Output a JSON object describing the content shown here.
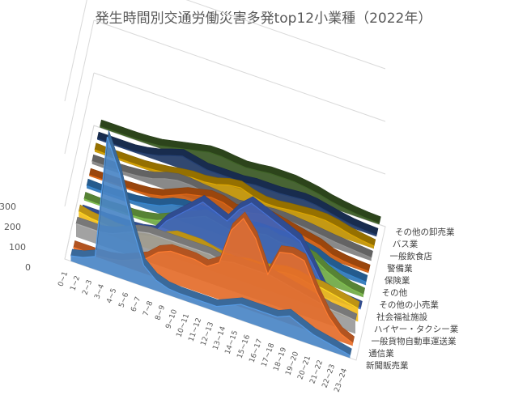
{
  "chart_data": {
    "type": "area",
    "title": "発生時間別交通労働災害多発top12小業種（2022年）",
    "zlim": [
      0,
      300
    ],
    "z_ticks": [
      "0",
      "100",
      "200",
      "300"
    ],
    "x_categories": [
      "0~1",
      "1~2",
      "2~3",
      "3~4",
      "4~5",
      "5~6",
      "6~7",
      "7~8",
      "8~9",
      "9~10",
      "10~11",
      "11~12",
      "12~13",
      "13~14",
      "14~15",
      "15~16",
      "16~17",
      "17~18",
      "18~19",
      "19~20",
      "20~21",
      "21~22",
      "22~23",
      "23~24"
    ],
    "series": [
      {
        "name": "新聞販売業",
        "color": "#4A86C6",
        "values": [
          10,
          15,
          25,
          260,
          200,
          110,
          40,
          20,
          12,
          10,
          10,
          10,
          10,
          20,
          30,
          30,
          30,
          30,
          40,
          30,
          20,
          15,
          10,
          5
        ]
      },
      {
        "name": "通信業",
        "color": "#E46C2A",
        "values": [
          3,
          3,
          3,
          5,
          10,
          20,
          30,
          50,
          60,
          60,
          60,
          55,
          70,
          140,
          170,
          140,
          80,
          130,
          135,
          130,
          80,
          40,
          15,
          5
        ]
      },
      {
        "name": "一般貨物自動車運送業",
        "color": "#9A9A9A",
        "values": [
          25,
          25,
          25,
          30,
          40,
          50,
          55,
          55,
          55,
          55,
          55,
          55,
          50,
          55,
          55,
          55,
          55,
          50,
          45,
          40,
          35,
          30,
          28,
          25
        ]
      },
      {
        "name": "ハイヤー・タクシー業",
        "color": "#F2BC1A",
        "values": [
          25,
          20,
          18,
          15,
          15,
          20,
          25,
          30,
          40,
          40,
          40,
          35,
          30,
          30,
          35,
          35,
          40,
          45,
          45,
          40,
          40,
          35,
          30,
          25
        ]
      },
      {
        "name": "社会福祉施設",
        "color": "#3E62B8",
        "values": [
          2,
          2,
          2,
          3,
          3,
          5,
          10,
          40,
          60,
          80,
          100,
          90,
          80,
          110,
          130,
          120,
          110,
          100,
          90,
          55,
          15,
          8,
          5,
          3
        ]
      },
      {
        "name": "その他の小売業",
        "color": "#6FA844",
        "values": [
          3,
          2,
          2,
          3,
          3,
          5,
          10,
          20,
          30,
          40,
          50,
          45,
          40,
          45,
          50,
          55,
          50,
          50,
          45,
          40,
          25,
          15,
          8,
          5
        ]
      },
      {
        "name": "その他",
        "color": "#2E75B6",
        "values": [
          5,
          4,
          4,
          5,
          6,
          10,
          15,
          25,
          30,
          30,
          30,
          28,
          25,
          30,
          35,
          35,
          35,
          35,
          30,
          25,
          15,
          10,
          8,
          6
        ]
      },
      {
        "name": "保険業",
        "color": "#C55A11",
        "values": [
          2,
          2,
          2,
          2,
          3,
          5,
          10,
          20,
          30,
          35,
          40,
          38,
          30,
          35,
          40,
          40,
          35,
          30,
          25,
          20,
          10,
          6,
          4,
          3
        ]
      },
      {
        "name": "警備業",
        "color": "#7F7F7F",
        "values": [
          5,
          5,
          5,
          6,
          8,
          12,
          20,
          25,
          25,
          22,
          20,
          18,
          15,
          18,
          20,
          22,
          22,
          20,
          18,
          15,
          12,
          10,
          8,
          6
        ]
      },
      {
        "name": "一般飲食店",
        "color": "#BF9000",
        "values": [
          4,
          3,
          3,
          3,
          3,
          5,
          8,
          12,
          15,
          15,
          18,
          25,
          28,
          20,
          15,
          15,
          18,
          20,
          22,
          22,
          18,
          12,
          8,
          5
        ]
      },
      {
        "name": "バス業",
        "color": "#1F3864",
        "values": [
          2,
          2,
          2,
          2,
          5,
          10,
          18,
          25,
          20,
          15,
          15,
          15,
          15,
          18,
          18,
          18,
          20,
          22,
          20,
          15,
          10,
          6,
          4,
          3
        ]
      },
      {
        "name": "その他の卸売業",
        "color": "#385723",
        "values": [
          2,
          2,
          2,
          2,
          3,
          5,
          10,
          15,
          20,
          25,
          25,
          22,
          20,
          22,
          25,
          25,
          25,
          22,
          18,
          12,
          8,
          5,
          3,
          2
        ]
      }
    ]
  }
}
